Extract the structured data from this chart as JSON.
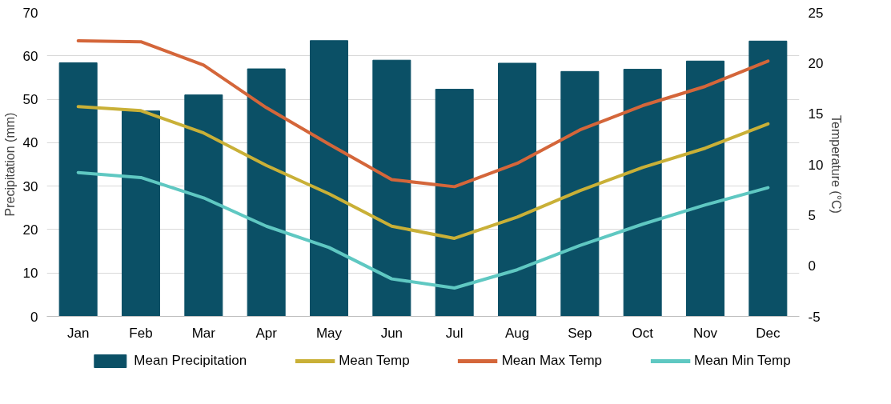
{
  "chart_data": {
    "type": "bar",
    "categories": [
      "Jan",
      "Feb",
      "Mar",
      "Apr",
      "May",
      "Jun",
      "Jul",
      "Aug",
      "Sep",
      "Oct",
      "Nov",
      "Dec"
    ],
    "ylabel": "Precipitation (mm)",
    "y2label": "Temperature (°C)",
    "ylim": [
      0,
      70
    ],
    "yticks": [
      0,
      10,
      20,
      30,
      40,
      50,
      60,
      70
    ],
    "y2lim": [
      -5,
      25
    ],
    "y2ticks": [
      -5,
      0,
      5,
      10,
      15,
      20,
      25
    ],
    "grid": "y",
    "legend": "bottom",
    "series": [
      {
        "name": "Mean Precipitation",
        "color": "#0b5066",
        "values": [
          58.4,
          47.3,
          51,
          57,
          63.5,
          59,
          52.3,
          58.3,
          56.4,
          56.9,
          58.8,
          63.4
        ]
      },
      {
        "name": "Mean Temp",
        "type": "line",
        "axis": "y2",
        "color": "#c9b037",
        "values": [
          15.7,
          15.3,
          13.1,
          9.9,
          7.1,
          3.9,
          2.7,
          4.8,
          7.4,
          9.7,
          11.6,
          14
        ]
      },
      {
        "name": "Mean Max Temp",
        "type": "line",
        "axis": "y2",
        "color": "#d4663a",
        "values": [
          22.2,
          22.1,
          19.8,
          15.6,
          12,
          8.5,
          7.8,
          10.1,
          13.4,
          15.8,
          17.7,
          20.2
        ]
      },
      {
        "name": "Mean Min Temp",
        "type": "line",
        "axis": "y2",
        "color": "#5fc8c2",
        "values": [
          9.2,
          8.7,
          6.7,
          3.9,
          1.8,
          -1.3,
          -2.2,
          -0.4,
          2,
          4.1,
          6,
          7.7
        ]
      }
    ]
  }
}
